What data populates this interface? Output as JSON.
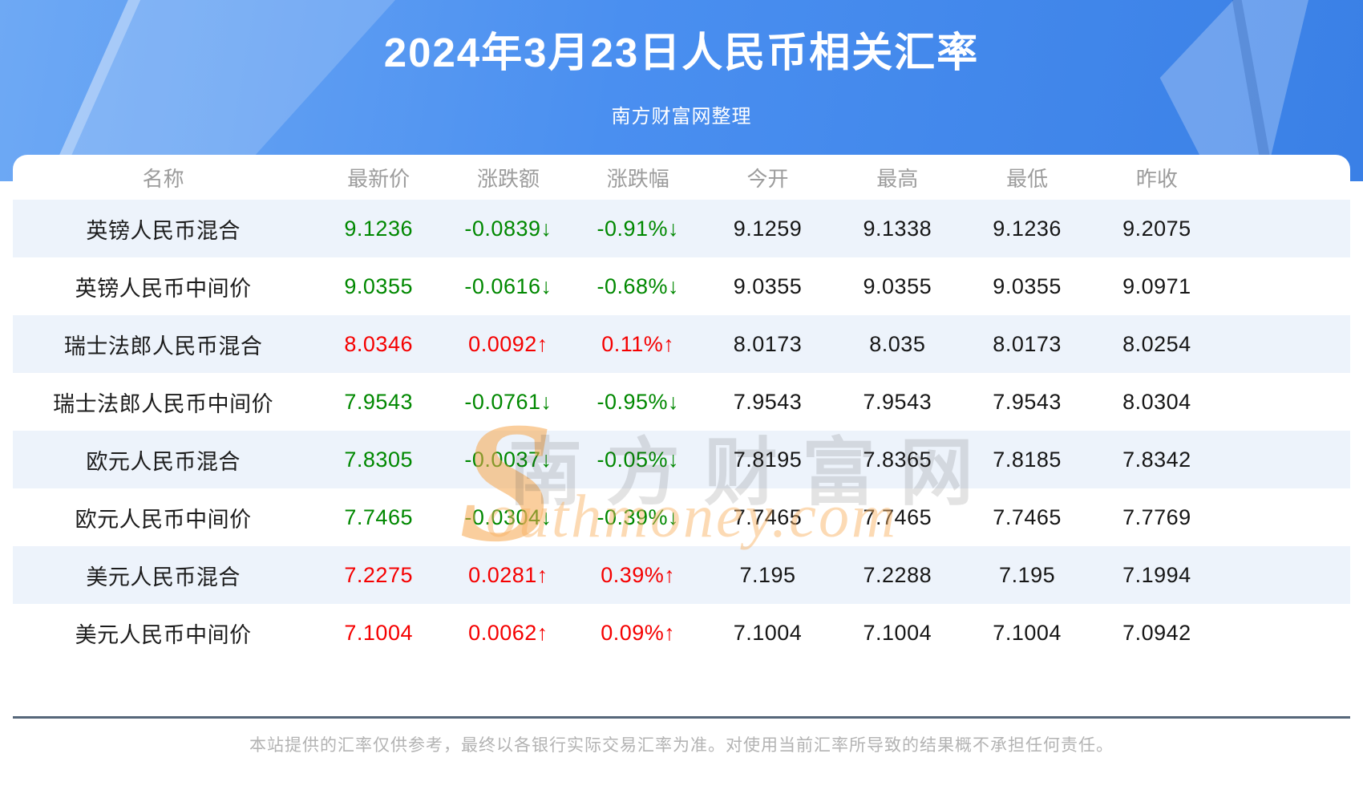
{
  "header": {
    "title": "2024年3月23日人民币相关汇率",
    "subtitle": "南方财富网整理"
  },
  "table": {
    "columns": [
      "名称",
      "最新价",
      "涨跌额",
      "涨跌幅",
      "今开",
      "最高",
      "最低",
      "昨收"
    ],
    "rows": [
      {
        "name": "英镑人民币混合",
        "latest": "9.1236",
        "change": "-0.0839↓",
        "change_pct": "-0.91%↓",
        "open": "9.1259",
        "high": "9.1338",
        "low": "9.1236",
        "prev_close": "9.2075",
        "trend": "down"
      },
      {
        "name": "英镑人民币中间价",
        "latest": "9.0355",
        "change": "-0.0616↓",
        "change_pct": "-0.68%↓",
        "open": "9.0355",
        "high": "9.0355",
        "low": "9.0355",
        "prev_close": "9.0971",
        "trend": "down"
      },
      {
        "name": "瑞士法郎人民币混合",
        "latest": "8.0346",
        "change": "0.0092↑",
        "change_pct": "0.11%↑",
        "open": "8.0173",
        "high": "8.035",
        "low": "8.0173",
        "prev_close": "8.0254",
        "trend": "up"
      },
      {
        "name": "瑞士法郎人民币中间价",
        "latest": "7.9543",
        "change": "-0.0761↓",
        "change_pct": "-0.95%↓",
        "open": "7.9543",
        "high": "7.9543",
        "low": "7.9543",
        "prev_close": "8.0304",
        "trend": "down"
      },
      {
        "name": "欧元人民币混合",
        "latest": "7.8305",
        "change": "-0.0037↓",
        "change_pct": "-0.05%↓",
        "open": "7.8195",
        "high": "7.8365",
        "low": "7.8185",
        "prev_close": "7.8342",
        "trend": "down"
      },
      {
        "name": "欧元人民币中间价",
        "latest": "7.7465",
        "change": "-0.0304↓",
        "change_pct": "-0.39%↓",
        "open": "7.7465",
        "high": "7.7465",
        "low": "7.7465",
        "prev_close": "7.7769",
        "trend": "down"
      },
      {
        "name": "美元人民币混合",
        "latest": "7.2275",
        "change": "0.0281↑",
        "change_pct": "0.39%↑",
        "open": "7.195",
        "high": "7.2288",
        "low": "7.195",
        "prev_close": "7.1994",
        "trend": "up"
      },
      {
        "name": "美元人民币中间价",
        "latest": "7.1004",
        "change": "0.0062↑",
        "change_pct": "0.09%↑",
        "open": "7.1004",
        "high": "7.1004",
        "low": "7.1004",
        "prev_close": "7.0942",
        "trend": "up"
      }
    ]
  },
  "watermark": {
    "logo_letter": "S",
    "site_name": "南方财富网",
    "domain_script": "outhmoney.com"
  },
  "footer": {
    "disclaimer": "本站提供的汇率仅供参考，最终以各银行实际交易汇率为准。对使用当前汇率所导致的结果概不承担任何责任。"
  },
  "colors": {
    "up_red": "#f50000",
    "down_green": "#008800",
    "header_blue": "#4a8ff0",
    "row_alt": "#edf3fb"
  },
  "chart_data": {
    "type": "table",
    "title": "2024年3月23日人民币相关汇率",
    "subtitle": "南方财富网整理",
    "columns": [
      "名称",
      "最新价",
      "涨跌额",
      "涨跌幅",
      "今开",
      "最高",
      "最低",
      "昨收"
    ],
    "rows": [
      [
        "英镑人民币混合",
        "9.1236",
        "-0.0839↓",
        "-0.91%↓",
        "9.1259",
        "9.1338",
        "9.1236",
        "9.2075"
      ],
      [
        "英镑人民币中间价",
        "9.0355",
        "-0.0616↓",
        "-0.68%↓",
        "9.0355",
        "9.0355",
        "9.0355",
        "9.0971"
      ],
      [
        "瑞士法郎人民币混合",
        "8.0346",
        "0.0092↑",
        "0.11%↑",
        "8.0173",
        "8.035",
        "8.0173",
        "8.0254"
      ],
      [
        "瑞士法郎人民币中间价",
        "7.9543",
        "-0.0761↓",
        "-0.95%↓",
        "7.9543",
        "7.9543",
        "7.9543",
        "8.0304"
      ],
      [
        "欧元人民币混合",
        "7.8305",
        "-0.0037↓",
        "-0.05%↓",
        "7.8195",
        "7.8365",
        "7.8185",
        "7.8342"
      ],
      [
        "欧元人民币中间价",
        "7.7465",
        "-0.0304↓",
        "-0.39%↓",
        "7.7465",
        "7.7465",
        "7.7465",
        "7.7769"
      ],
      [
        "美元人民币混合",
        "7.2275",
        "0.0281↑",
        "0.39%↑",
        "7.195",
        "7.2288",
        "7.195",
        "7.1994"
      ],
      [
        "美元人民币中间价",
        "7.1004",
        "0.0062↑",
        "0.09%↑",
        "7.1004",
        "7.1004",
        "7.1004",
        "7.0942"
      ]
    ]
  }
}
